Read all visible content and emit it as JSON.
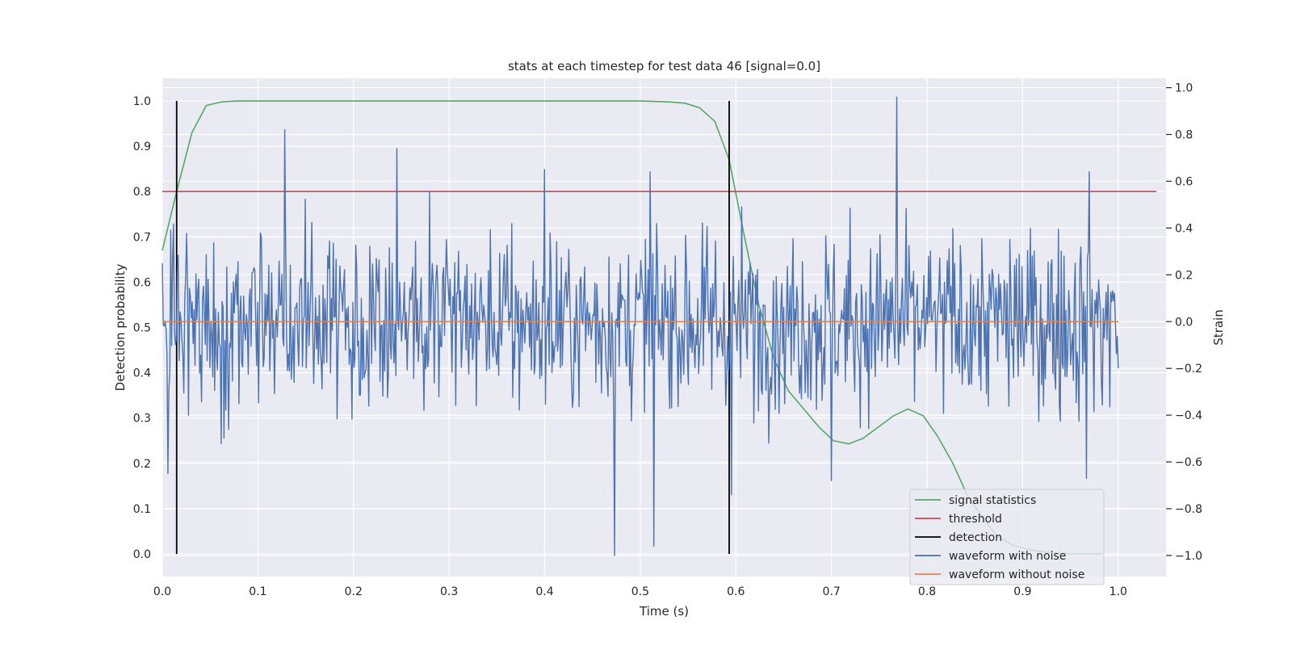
{
  "chart_data": {
    "type": "line",
    "title": "stats at each timestep for test data 46 [signal=0.0]",
    "xlabel": "Time (s)",
    "ylabel": "Detection probability",
    "y2label": "Strain",
    "xlim": [
      0.0,
      1.05
    ],
    "ylim": [
      -0.05,
      1.05
    ],
    "y2lim": [
      -1.09,
      1.04
    ],
    "xticks": [
      "0.0",
      "0.1",
      "0.2",
      "0.3",
      "0.4",
      "0.5",
      "0.6",
      "0.7",
      "0.8",
      "0.9",
      "1.0"
    ],
    "xtick_values": [
      0.0,
      0.1,
      0.2,
      0.3,
      0.4,
      0.5,
      0.6,
      0.7,
      0.8,
      0.9,
      1.0
    ],
    "yticks": [
      "0.0",
      "0.1",
      "0.2",
      "0.3",
      "0.4",
      "0.5",
      "0.6",
      "0.7",
      "0.8",
      "0.9",
      "1.0"
    ],
    "ytick_values": [
      0.0,
      0.1,
      0.2,
      0.3,
      0.4,
      0.5,
      0.6,
      0.7,
      0.8,
      0.9,
      1.0
    ],
    "y2ticks": [
      "−1.0",
      "−0.8",
      "−0.6",
      "−0.4",
      "−0.2",
      "0.0",
      "0.2",
      "0.4",
      "0.6",
      "0.8",
      "1.0"
    ],
    "y2tick_values": [
      -1.0,
      -0.8,
      -0.6,
      -0.4,
      -0.2,
      0.0,
      0.2,
      0.4,
      0.6,
      0.8,
      1.0
    ],
    "grid": true,
    "legend_position": "lower-right",
    "series": [
      {
        "name": "signal statistics",
        "color": "#55a868",
        "axis": "left",
        "x": [
          0.0,
          0.015,
          0.031,
          0.046,
          0.062,
          0.077,
          0.1,
          0.2,
          0.3,
          0.4,
          0.5,
          0.53,
          0.547,
          0.562,
          0.578,
          0.593,
          0.609,
          0.624,
          0.64,
          0.655,
          0.671,
          0.687,
          0.702,
          0.718,
          0.733,
          0.749,
          0.765,
          0.78,
          0.796,
          0.811,
          0.827,
          0.842,
          0.858,
          0.873,
          0.889,
          0.905,
          0.92,
          0.936,
          0.951,
          0.967,
          0.983
        ],
        "y": [
          0.67,
          0.8,
          0.93,
          0.99,
          0.998,
          1.0,
          1.0,
          1.0,
          1.0,
          1.0,
          1.0,
          0.998,
          0.995,
          0.985,
          0.955,
          0.87,
          0.7,
          0.55,
          0.43,
          0.36,
          0.32,
          0.28,
          0.25,
          0.243,
          0.255,
          0.28,
          0.305,
          0.32,
          0.305,
          0.26,
          0.2,
          0.13,
          0.08,
          0.04,
          0.02,
          0.01,
          0.005,
          0.002,
          0.0,
          0.0,
          0.0
        ]
      },
      {
        "name": "threshold",
        "color": "#c44e52",
        "axis": "left",
        "x": [
          0.0,
          1.04
        ],
        "y": [
          0.8,
          0.8
        ]
      },
      {
        "name": "detection",
        "color": "#000000",
        "axis": "left",
        "segments": [
          {
            "x": 0.015,
            "y0": 0.0,
            "y1": 1.0
          },
          {
            "x": 0.593,
            "y0": 0.0,
            "y1": 1.0
          }
        ]
      },
      {
        "name": "waveform with noise",
        "color": "#4c72b0",
        "axis": "right",
        "n_samples": 1024,
        "x_range": [
          0.0,
          1.0
        ],
        "noise_sigma": 0.27,
        "peaks": [
          {
            "x": 0.0,
            "y": 0.25
          },
          {
            "x": 0.006,
            "y": -0.65
          },
          {
            "x": 0.128,
            "y": 0.82
          },
          {
            "x": 0.245,
            "y": 0.74
          },
          {
            "x": 0.4,
            "y": 0.65
          },
          {
            "x": 0.473,
            "y": -1.0
          },
          {
            "x": 0.514,
            "y": -0.96
          },
          {
            "x": 0.51,
            "y": 0.64
          },
          {
            "x": 0.595,
            "y": -0.74
          },
          {
            "x": 0.7,
            "y": -0.68
          },
          {
            "x": 0.768,
            "y": 0.96
          },
          {
            "x": 0.97,
            "y": 0.64
          },
          {
            "x": 0.967,
            "y": -0.67
          }
        ],
        "end_value": -0.2
      },
      {
        "name": "waveform without noise",
        "color": "#dd8452",
        "axis": "right",
        "x": [
          0.0,
          1.0
        ],
        "y": [
          0.0,
          0.0
        ]
      }
    ]
  }
}
